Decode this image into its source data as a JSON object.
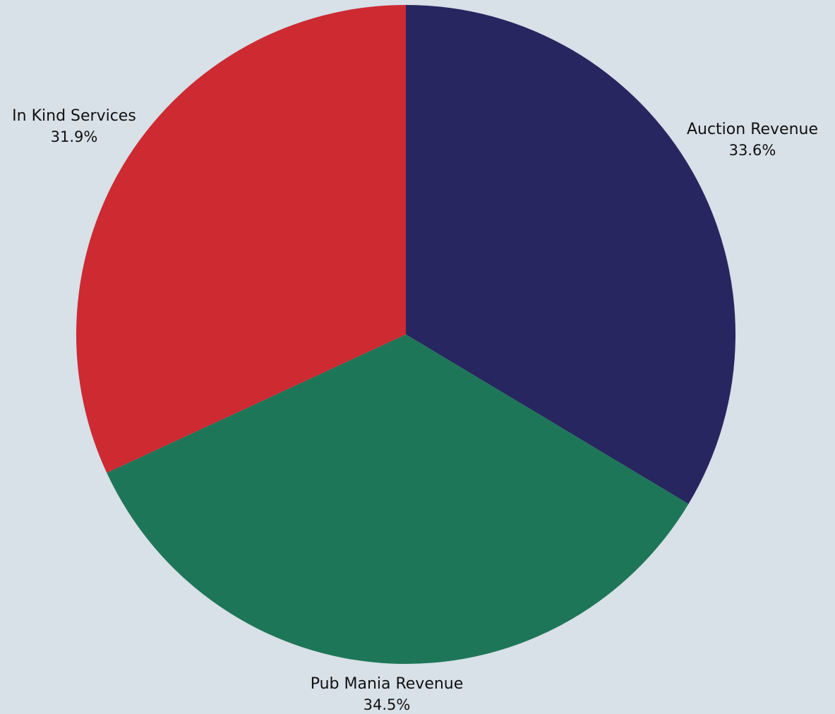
{
  "chart_data": {
    "type": "pie",
    "title": "",
    "start": "top",
    "direction": "clockwise",
    "legend": "none",
    "slices": [
      {
        "label": "Auction Revenue",
        "value": 33.6,
        "percent_label": "33.6%",
        "color": "#272660"
      },
      {
        "label": "Pub Mania Revenue",
        "value": 34.5,
        "percent_label": "34.5%",
        "color": "#1e7658"
      },
      {
        "label": "In Kind Services",
        "value": 31.9,
        "percent_label": "31.9%",
        "color": "#cd2a32"
      }
    ]
  },
  "colors": {
    "background": "#d8e0e8",
    "text": "#111111"
  }
}
